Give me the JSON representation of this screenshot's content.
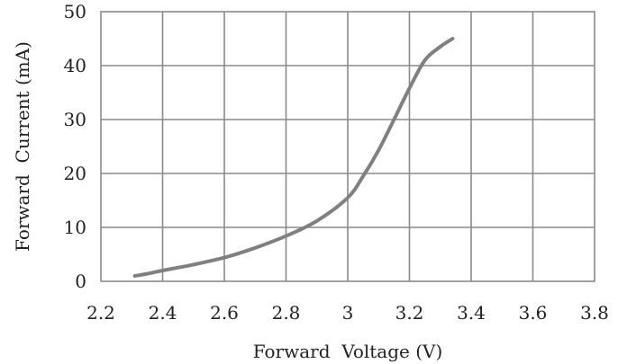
{
  "chart_data": {
    "type": "line",
    "title": "",
    "xlabel": "Forward  Voltage (V)",
    "ylabel": "Forward  Current (mA)",
    "xlim": [
      2.2,
      3.8
    ],
    "ylim": [
      0,
      50
    ],
    "grid": true,
    "x_ticks": [
      2.2,
      2.4,
      2.6,
      2.8,
      3.0,
      3.2,
      3.4,
      3.6,
      3.8
    ],
    "x_tick_labels": [
      "2.2",
      "2.4",
      "2.6",
      "2.8",
      "3",
      "3.2",
      "3.4",
      "3.6",
      "3.8"
    ],
    "y_ticks": [
      0,
      10,
      20,
      30,
      40,
      50
    ],
    "y_tick_labels": [
      "0",
      "10",
      "20",
      "30",
      "40",
      "50"
    ],
    "series": [
      {
        "color": "#808080",
        "x": [
          2.31,
          2.35,
          2.4,
          2.5,
          2.6,
          2.7,
          2.8,
          2.9,
          3.0,
          3.05,
          3.1,
          3.15,
          3.2,
          3.25,
          3.3,
          3.34
        ],
        "y": [
          1,
          1.4,
          2,
          3.1,
          4.4,
          6.2,
          8.4,
          11.2,
          15.5,
          19.5,
          24.3,
          30,
          35.8,
          41,
          43.5,
          45
        ]
      }
    ]
  }
}
